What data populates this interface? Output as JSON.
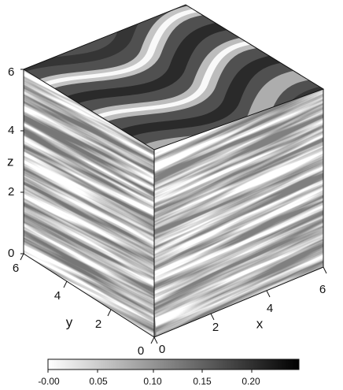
{
  "figure": {
    "axes": {
      "z": {
        "name": "z",
        "ticks": [
          "0",
          "2",
          "4",
          "6"
        ]
      },
      "y": {
        "name": "y",
        "ticks": [
          "0",
          "2",
          "4",
          "6"
        ]
      },
      "x": {
        "name": "x",
        "ticks": [
          "0",
          "2",
          "4",
          "6"
        ]
      }
    },
    "colorbar": {
      "ticks": [
        "-0.00",
        "0.05",
        "0.10",
        "0.15",
        "0.20"
      ],
      "colors": {
        "low": "#ffffff",
        "high": "#000000"
      }
    }
  }
}
